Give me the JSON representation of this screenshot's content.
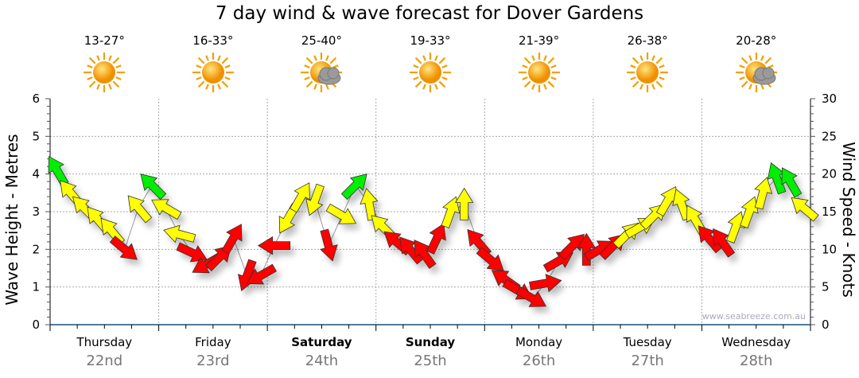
{
  "title": "7 day wind & wave forecast for Dover Gardens",
  "watermark": "www.seabreeze.com.au",
  "days": [
    {
      "day": "Thursday",
      "date": "22nd",
      "temp": "13-27°",
      "icon": "sunny-icon",
      "bold": false
    },
    {
      "day": "Friday",
      "date": "23rd",
      "temp": "16-33°",
      "icon": "sunny-icon",
      "bold": false
    },
    {
      "day": "Saturday",
      "date": "24th",
      "temp": "25-40°",
      "icon": "partly-cloudy-icon",
      "bold": true
    },
    {
      "day": "Sunday",
      "date": "25th",
      "temp": "19-33°",
      "icon": "sunny-icon",
      "bold": true
    },
    {
      "day": "Monday",
      "date": "26th",
      "temp": "21-39°",
      "icon": "sunny-icon",
      "bold": false
    },
    {
      "day": "Tuesday",
      "date": "27th",
      "temp": "26-38°",
      "icon": "sunny-icon",
      "bold": false
    },
    {
      "day": "Wednesday",
      "date": "28th",
      "temp": "20-28°",
      "icon": "partly-cloudy-icon",
      "bold": false
    }
  ],
  "chart_data": {
    "type": "scatter",
    "title": "7 day wind & wave forecast for Dover Gardens",
    "ylabel": "Wave Height - Metres",
    "y2label": "Wind Speed - Knots",
    "ylim": [
      0,
      6
    ],
    "y2lim": [
      0,
      30
    ],
    "yticks": [
      "0",
      "1",
      "2",
      "3",
      "4",
      "5",
      "6"
    ],
    "y2ticks": [
      "0",
      "5",
      "10",
      "15",
      "20",
      "25",
      "30"
    ],
    "grid": true,
    "colors": {
      "light": "#ff0000",
      "moderate": "#ffff00",
      "strong": "#00ee00"
    },
    "thresholds_knots": [
      12,
      18
    ],
    "interval_hours": 3,
    "wind_series": [
      [
        20.5,
        330
      ],
      [
        17.5,
        320
      ],
      [
        15.5,
        315
      ],
      [
        14,
        320
      ],
      [
        12.5,
        320
      ],
      [
        10,
        130
      ],
      [
        15.5,
        320
      ],
      [
        18.5,
        315
      ],
      [
        15.5,
        300
      ],
      [
        12,
        285
      ],
      [
        9.5,
        115
      ],
      [
        8,
        240
      ],
      [
        9,
        45
      ],
      [
        11.5,
        30
      ],
      [
        6.5,
        200
      ],
      [
        6.5,
        240
      ],
      [
        10.5,
        270
      ],
      [
        14,
        210
      ],
      [
        17,
        30
      ],
      [
        16.5,
        200
      ],
      [
        10.5,
        165
      ],
      [
        14.5,
        120
      ],
      [
        18.5,
        45
      ],
      [
        16,
        350
      ],
      [
        13,
        315
      ],
      [
        11,
        310
      ],
      [
        10,
        320
      ],
      [
        9.5,
        325
      ],
      [
        11.5,
        25
      ],
      [
        15,
        20
      ],
      [
        16,
        0
      ],
      [
        11,
        320
      ],
      [
        8.5,
        130
      ],
      [
        6,
        305
      ],
      [
        4.5,
        120
      ],
      [
        3.5,
        120
      ],
      [
        5.5,
        80
      ],
      [
        8.5,
        60
      ],
      [
        10.5,
        45
      ],
      [
        10,
        0
      ],
      [
        10,
        60
      ],
      [
        10.5,
        45
      ],
      [
        12,
        45
      ],
      [
        13,
        60
      ],
      [
        14.5,
        45
      ],
      [
        16.5,
        30
      ],
      [
        16,
        340
      ],
      [
        14,
        330
      ],
      [
        11.5,
        320
      ],
      [
        11,
        325
      ],
      [
        13,
        20
      ],
      [
        15,
        20
      ],
      [
        17.5,
        15
      ],
      [
        19.5,
        340
      ],
      [
        19,
        330
      ],
      [
        15.5,
        310
      ]
    ]
  }
}
